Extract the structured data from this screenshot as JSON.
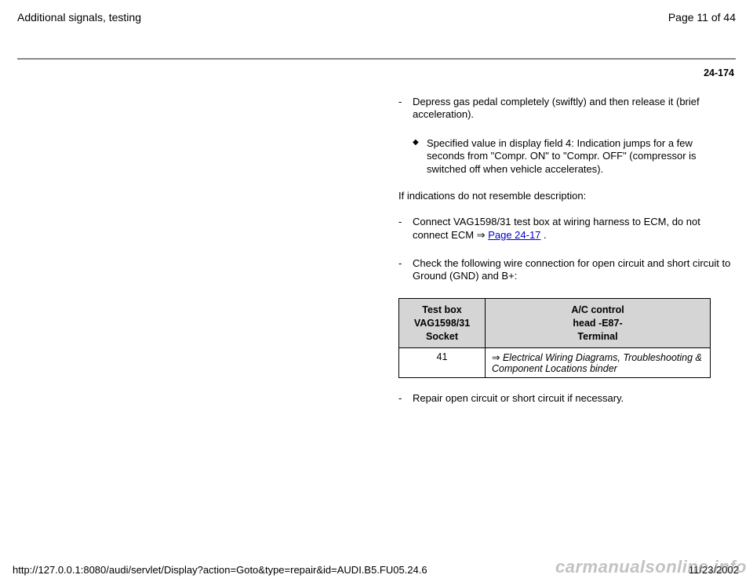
{
  "header": {
    "title": "Additional signals, testing",
    "page_label": "Page 11 of 44"
  },
  "section_number": "24-174",
  "steps": {
    "s1": "Depress gas pedal completely (swiftly) and then release it (brief acceleration).",
    "s1_sub": "Specified value in display field 4: Indication jumps for a few seconds from \"Compr. ON\" to \"Compr. OFF\" (compressor is switched off when vehicle accelerates).",
    "cond": "If indications do not resemble description:",
    "s2_a": "Connect VAG1598/31 test box at wiring harness to ECM, do not connect ECM ",
    "s2_link": "Page 24-17",
    "s2_b": " .",
    "s3": "Check the following wire connection for open circuit and short circuit to Ground (GND) and B+:",
    "s4": "Repair open circuit or short circuit if necessary."
  },
  "table": {
    "col1_l1": "Test box",
    "col1_l2": "VAG1598/31",
    "col1_l3": "Socket",
    "col2_l1": "A/C control",
    "col2_l2": "head -E87-",
    "col2_l3": "Terminal",
    "row1_socket": "41",
    "row1_arrow": "⇒ ",
    "row1_term": "Electrical Wiring Diagrams, Troubleshooting & Component Locations binder"
  },
  "footer": {
    "url": "http://127.0.0.1:8080/audi/servlet/Display?action=Goto&type=repair&id=AUDI.B5.FU05.24.6",
    "date": "11/23/2002"
  },
  "watermark": "carmanualsonline.info",
  "colors": {
    "link": "#0000cc",
    "table_header_bg": "#d5d5d5",
    "rule": "#888888",
    "watermark": "rgba(120,120,120,0.45)"
  }
}
